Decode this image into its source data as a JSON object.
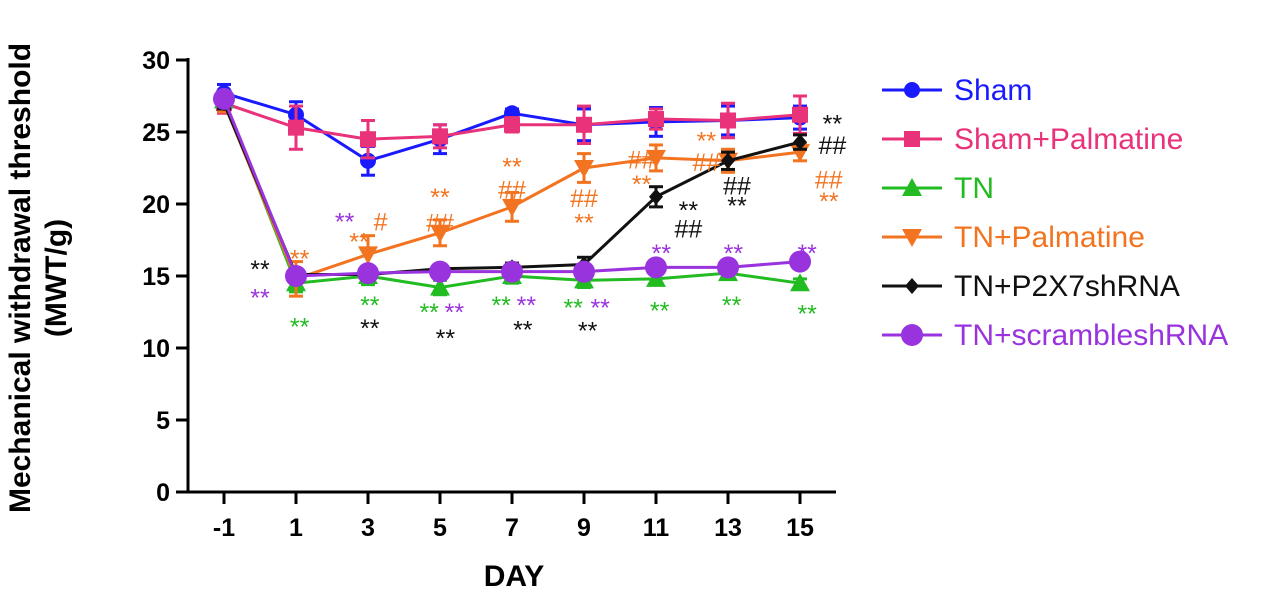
{
  "chart_data": {
    "type": "line",
    "xlabel": "DAY",
    "ylabel": [
      "Mechanical withdrawal threshold",
      "(MWT/g)"
    ],
    "x": [
      -1,
      1,
      3,
      5,
      7,
      9,
      11,
      13,
      15
    ],
    "x_tick_labels": [
      "-1",
      "1",
      "3",
      "5",
      "7",
      "9",
      "11",
      "13",
      "15"
    ],
    "ylim": [
      0,
      30
    ],
    "y_ticks": [
      0,
      5,
      10,
      15,
      20,
      25,
      30
    ],
    "y_tick_labels": [
      "0",
      "5",
      "10",
      "15",
      "20",
      "25",
      "30"
    ],
    "legend_position": "right",
    "series": [
      {
        "name": "Sham",
        "color": "#1a1aff",
        "marker": "circle",
        "values": [
          27.7,
          26.2,
          23.0,
          24.5,
          26.3,
          25.5,
          25.7,
          25.8,
          26.0
        ],
        "errors": [
          0.6,
          0.9,
          1.0,
          1.0,
          0.3,
          1.1,
          1.0,
          1.0,
          0.8
        ]
      },
      {
        "name": "Sham+Palmatine",
        "color": "#e8337a",
        "marker": "square",
        "values": [
          27.0,
          25.3,
          24.5,
          24.7,
          25.5,
          25.5,
          25.9,
          25.8,
          26.2
        ],
        "errors": [
          0.7,
          1.5,
          1.3,
          0.8,
          0.5,
          1.3,
          0.7,
          1.2,
          1.3
        ]
      },
      {
        "name": "TN",
        "color": "#22bb22",
        "marker": "triangle-up",
        "values": [
          27.2,
          14.5,
          15.0,
          14.2,
          15.0,
          14.7,
          14.8,
          15.2,
          14.5
        ],
        "errors": [
          0.4,
          0.6,
          0.6,
          0.5,
          0.5,
          0.5,
          0.4,
          0.4,
          0.3
        ]
      },
      {
        "name": "TN+Palmatine",
        "color": "#f27420",
        "marker": "triangle-down",
        "values": [
          27.0,
          14.8,
          16.5,
          18.0,
          19.8,
          22.5,
          23.2,
          23.0,
          23.6
        ],
        "errors": [
          0.6,
          1.2,
          1.3,
          0.9,
          1.0,
          1.0,
          0.9,
          0.8,
          0.6
        ]
      },
      {
        "name": "TN+P2X7shRNA",
        "color": "#111111",
        "marker": "diamond",
        "values": [
          27.0,
          15.1,
          15.1,
          15.5,
          15.6,
          15.8,
          20.5,
          23.0,
          24.3
        ],
        "errors": [
          0.4,
          0.4,
          0.4,
          0.3,
          0.3,
          0.5,
          0.7,
          0.6,
          0.5
        ]
      },
      {
        "name": "TN+scrambleshRNA",
        "color": "#9933dd",
        "marker": "circle-large",
        "values": [
          27.3,
          15.0,
          15.2,
          15.3,
          15.3,
          15.3,
          15.6,
          15.6,
          16.0
        ],
        "errors": [
          0.4,
          0.4,
          0.4,
          0.3,
          0.3,
          0.3,
          0.3,
          0.3,
          0.3
        ]
      }
    ],
    "annotations": [
      {
        "text": "**",
        "color": "#111111",
        "x": 0.0,
        "y": 15.5
      },
      {
        "text": "**",
        "color": "#9933dd",
        "x": 0.0,
        "y": 13.5
      },
      {
        "text": "**",
        "color": "#f27420",
        "x": 1.1,
        "y": 16.2
      },
      {
        "text": "**",
        "color": "#22bb22",
        "x": 1.1,
        "y": 11.5
      },
      {
        "text": "**",
        "color": "#9933dd",
        "x": 2.35,
        "y": 18.8
      },
      {
        "text": "**",
        "color": "#f27420",
        "x": 2.75,
        "y": 17.4
      },
      {
        "text": "#",
        "color": "#f27420",
        "x": 3.35,
        "y": 18.8
      },
      {
        "text": "**",
        "color": "#22bb22",
        "x": 3.05,
        "y": 13.0
      },
      {
        "text": "**",
        "color": "#111111",
        "x": 3.05,
        "y": 11.4
      },
      {
        "text": "**",
        "color": "#f27420",
        "x": 5.0,
        "y": 20.5
      },
      {
        "text": "##",
        "color": "#f27420",
        "x": 5.0,
        "y": 18.7
      },
      {
        "text": "**",
        "color": "#22bb22",
        "x": 4.7,
        "y": 12.5
      },
      {
        "text": "**",
        "color": "#9933dd",
        "x": 5.4,
        "y": 12.5
      },
      {
        "text": "**",
        "color": "#111111",
        "x": 5.15,
        "y": 10.7
      },
      {
        "text": "**",
        "color": "#f27420",
        "x": 7.0,
        "y": 22.6
      },
      {
        "text": "##",
        "color": "#f27420",
        "x": 7.0,
        "y": 21.0
      },
      {
        "text": "**",
        "color": "#22bb22",
        "x": 6.7,
        "y": 13.0
      },
      {
        "text": "**",
        "color": "#9933dd",
        "x": 7.4,
        "y": 13.0
      },
      {
        "text": "**",
        "color": "#111111",
        "x": 7.3,
        "y": 11.3
      },
      {
        "text": "##",
        "color": "#f27420",
        "x": 9.0,
        "y": 20.4
      },
      {
        "text": "**",
        "color": "#f27420",
        "x": 9.0,
        "y": 18.7
      },
      {
        "text": "**",
        "color": "#22bb22",
        "x": 8.7,
        "y": 12.8
      },
      {
        "text": "**",
        "color": "#9933dd",
        "x": 9.45,
        "y": 12.8
      },
      {
        "text": "**",
        "color": "#111111",
        "x": 9.1,
        "y": 11.2
      },
      {
        "text": "##",
        "color": "#f27420",
        "x": 10.6,
        "y": 23.1
      },
      {
        "text": "**",
        "color": "#f27420",
        "x": 10.6,
        "y": 21.4
      },
      {
        "text": "**",
        "color": "#f27420",
        "x": 12.4,
        "y": 24.4
      },
      {
        "text": "##",
        "color": "#f27420",
        "x": 12.4,
        "y": 22.9
      },
      {
        "text": "**",
        "color": "#111111",
        "x": 11.9,
        "y": 19.6
      },
      {
        "text": "##",
        "color": "#111111",
        "x": 11.9,
        "y": 18.3
      },
      {
        "text": "**",
        "color": "#9933dd",
        "x": 11.15,
        "y": 16.6
      },
      {
        "text": "**",
        "color": "#22bb22",
        "x": 11.1,
        "y": 12.6
      },
      {
        "text": "##",
        "color": "#111111",
        "x": 13.25,
        "y": 21.3
      },
      {
        "text": "**",
        "color": "#111111",
        "x": 13.25,
        "y": 19.9
      },
      {
        "text": "**",
        "color": "#9933dd",
        "x": 13.15,
        "y": 16.6
      },
      {
        "text": "**",
        "color": "#22bb22",
        "x": 13.1,
        "y": 13.0
      },
      {
        "text": "**",
        "color": "#111111",
        "x": 15.9,
        "y": 25.6
      },
      {
        "text": "##",
        "color": "#111111",
        "x": 15.9,
        "y": 24.1
      },
      {
        "text": "##",
        "color": "#f27420",
        "x": 15.8,
        "y": 21.7
      },
      {
        "text": "**",
        "color": "#f27420",
        "x": 15.8,
        "y": 20.2
      },
      {
        "text": "**",
        "color": "#9933dd",
        "x": 15.2,
        "y": 16.6
      },
      {
        "text": "**",
        "color": "#22bb22",
        "x": 15.2,
        "y": 12.4
      }
    ]
  }
}
